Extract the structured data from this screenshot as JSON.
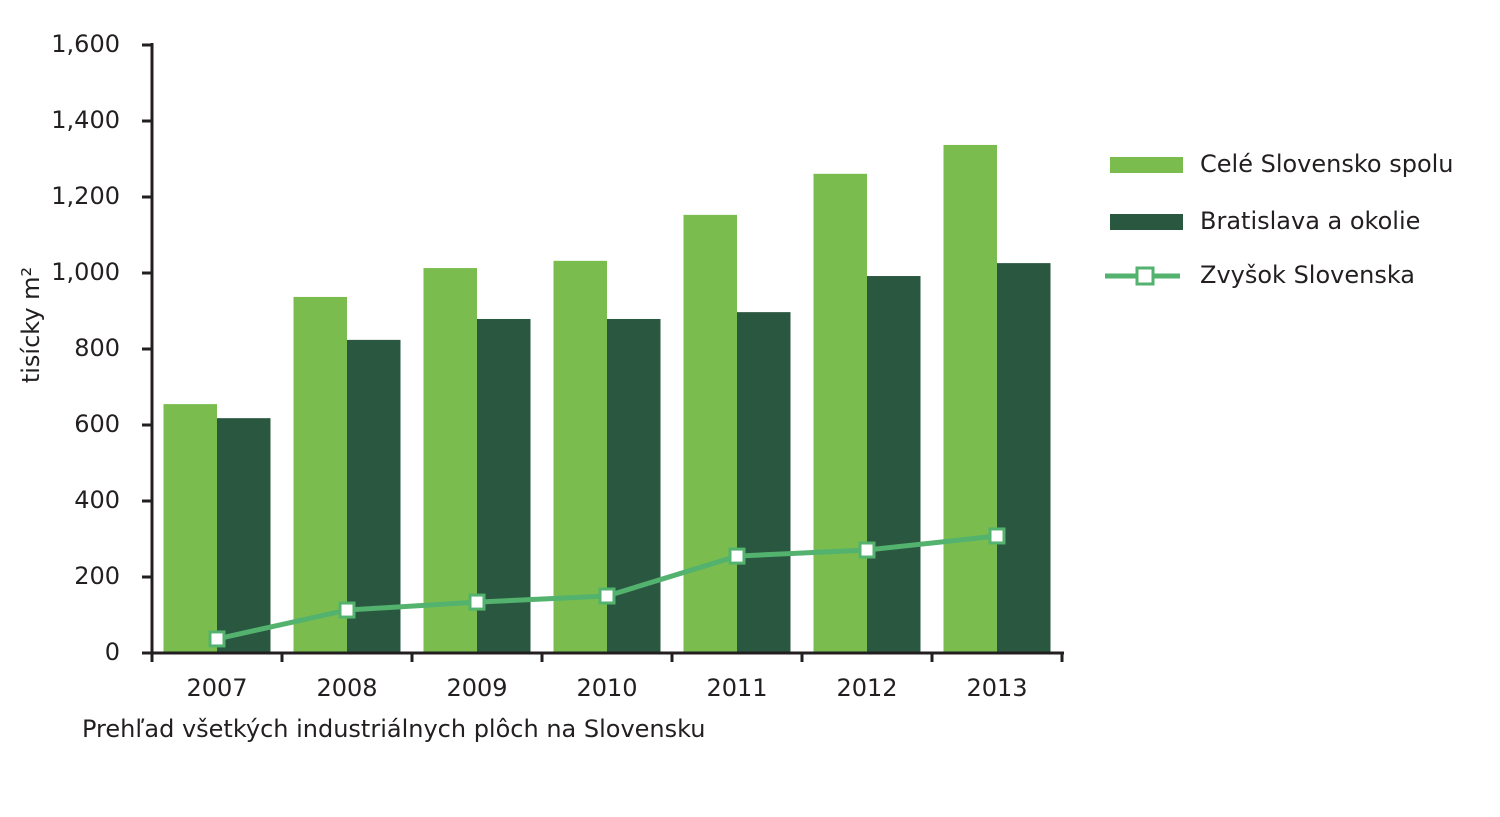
{
  "chart_data": {
    "type": "bar",
    "y_label": "tisícky m²",
    "caption": "Prehľad všetkých industriálnych plôch na Slovensku",
    "categories": [
      "2007",
      "2008",
      "2009",
      "2010",
      "2011",
      "2012",
      "2013"
    ],
    "series": [
      {
        "name": "Celé Slovensko spolu",
        "type": "bar",
        "color": "#7abd4e",
        "values": [
          655,
          937,
          1013,
          1032,
          1153,
          1261,
          1337
        ]
      },
      {
        "name": "Bratislava a okolie",
        "type": "bar",
        "color": "#2a5740",
        "values": [
          618,
          824,
          879,
          879,
          897,
          992,
          1026
        ]
      },
      {
        "name": "Zvyšok Slovenska",
        "type": "line",
        "color": "#52b26e",
        "values": [
          37,
          113,
          134,
          150,
          255,
          271,
          308
        ]
      }
    ],
    "ylim": [
      0,
      1600
    ],
    "yticks": [
      0,
      200,
      400,
      600,
      800,
      {
        "value": 1000,
        "label": "1,000"
      },
      {
        "value": 1200,
        "label": "1,200"
      },
      {
        "value": 1400,
        "label": "1,400"
      },
      {
        "value": 1600,
        "label": "1,600"
      }
    ],
    "legend": "right"
  }
}
